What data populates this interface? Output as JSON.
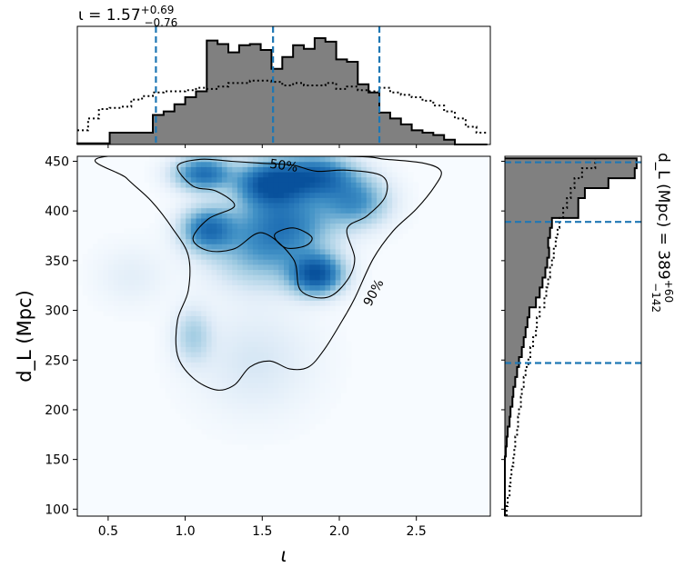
{
  "chart_data": [
    {
      "panel": "top-marginal",
      "type": "histogram",
      "title": "ι = 1.57",
      "title_sup": "+0.69",
      "title_sub": "−0.76",
      "xlim": [
        0.3,
        2.98
      ],
      "median": 1.57,
      "interval": [
        0.81,
        2.26
      ],
      "bin_edges": [
        0.3,
        0.37,
        0.44,
        0.51,
        0.58,
        0.65,
        0.72,
        0.79,
        0.86,
        0.93,
        1.0,
        1.07,
        1.14,
        1.21,
        1.28,
        1.35,
        1.42,
        1.49,
        1.56,
        1.63,
        1.7,
        1.77,
        1.84,
        1.91,
        1.98,
        2.05,
        2.12,
        2.19,
        2.26,
        2.33,
        2.4,
        2.47,
        2.54,
        2.61,
        2.68,
        2.75,
        2.82,
        2.89,
        2.96
      ],
      "posterior_counts": [
        1,
        1,
        1,
        10,
        10,
        10,
        10,
        25,
        28,
        34,
        40,
        45,
        88,
        85,
        78,
        84,
        85,
        80,
        64,
        74,
        84,
        81,
        90,
        87,
        72,
        70,
        51,
        44,
        27,
        22,
        17,
        12,
        10,
        8,
        4,
        0,
        0,
        0
      ],
      "prior_counts": [
        12,
        22,
        30,
        31,
        32,
        38,
        41,
        44,
        45,
        45,
        46,
        48,
        47,
        49,
        52,
        52,
        54,
        54,
        53,
        50,
        52,
        50,
        50,
        52,
        47,
        49,
        46,
        45,
        48,
        44,
        42,
        40,
        37,
        33,
        28,
        22,
        15,
        10
      ]
    },
    {
      "panel": "joint-density",
      "type": "heatmap",
      "xlabel": "ι",
      "ylabel": "d_L (Mpc)",
      "xlim": [
        0.3,
        2.98
      ],
      "ylim": [
        93,
        455
      ],
      "xticks": [
        "0.5",
        "1.0",
        "1.5",
        "2.0",
        "2.5"
      ],
      "yticks": [
        "100",
        "150",
        "200",
        "250",
        "300",
        "350",
        "400",
        "450"
      ],
      "contour_labels": [
        "50%",
        "90%"
      ],
      "colormap": [
        "#f7fbff",
        "#deebf7",
        "#9ecae1",
        "#4292c6",
        "#2171b5",
        "#08519c"
      ],
      "density_peaks": [
        {
          "x": 1.55,
          "y": 428,
          "amp": 0.95,
          "sx": 0.14,
          "sy": 14
        },
        {
          "x": 1.12,
          "y": 438,
          "amp": 0.72,
          "sx": 0.12,
          "sy": 11
        },
        {
          "x": 1.85,
          "y": 435,
          "amp": 0.8,
          "sx": 0.16,
          "sy": 14
        },
        {
          "x": 1.15,
          "y": 382,
          "amp": 0.7,
          "sx": 0.11,
          "sy": 14
        },
        {
          "x": 1.85,
          "y": 337,
          "amp": 0.95,
          "sx": 0.11,
          "sy": 13
        },
        {
          "x": 1.65,
          "y": 390,
          "amp": 0.55,
          "sx": 0.2,
          "sy": 22
        },
        {
          "x": 2.1,
          "y": 410,
          "amp": 0.5,
          "sx": 0.14,
          "sy": 16
        },
        {
          "x": 1.5,
          "y": 360,
          "amp": 0.35,
          "sx": 0.22,
          "sy": 24
        },
        {
          "x": 1.05,
          "y": 275,
          "amp": 0.22,
          "sx": 0.08,
          "sy": 18
        },
        {
          "x": 1.45,
          "y": 250,
          "amp": 0.1,
          "sx": 0.25,
          "sy": 35
        },
        {
          "x": 0.65,
          "y": 335,
          "amp": 0.06,
          "sx": 0.15,
          "sy": 20
        }
      ],
      "contour_90": [
        [
          0.5,
          455
        ],
        [
          0.62,
          433
        ],
        [
          0.78,
          410
        ],
        [
          0.92,
          382
        ],
        [
          1.02,
          355
        ],
        [
          1.02,
          320
        ],
        [
          0.95,
          290
        ],
        [
          0.95,
          255
        ],
        [
          1.05,
          232
        ],
        [
          1.2,
          220
        ],
        [
          1.32,
          225
        ],
        [
          1.42,
          243
        ],
        [
          1.55,
          249
        ],
        [
          1.68,
          241
        ],
        [
          1.8,
          243
        ],
        [
          1.9,
          260
        ],
        [
          2.02,
          290
        ],
        [
          2.1,
          312
        ],
        [
          2.22,
          352
        ],
        [
          2.35,
          380
        ],
        [
          2.5,
          402
        ],
        [
          2.62,
          425
        ],
        [
          2.66,
          440
        ],
        [
          2.55,
          448
        ],
        [
          2.3,
          452
        ],
        [
          2.0,
          455
        ]
      ],
      "contour_50_main": [
        [
          0.95,
          445
        ],
        [
          1.05,
          425
        ],
        [
          1.2,
          420
        ],
        [
          1.32,
          405
        ],
        [
          1.15,
          392
        ],
        [
          1.05,
          372
        ],
        [
          1.15,
          360
        ],
        [
          1.32,
          362
        ],
        [
          1.5,
          378
        ],
        [
          1.7,
          352
        ],
        [
          1.75,
          320
        ],
        [
          1.92,
          313
        ],
        [
          2.05,
          330
        ],
        [
          2.1,
          352
        ],
        [
          2.05,
          382
        ],
        [
          2.18,
          395
        ],
        [
          2.3,
          415
        ],
        [
          2.28,
          435
        ],
        [
          2.05,
          441
        ],
        [
          1.85,
          440
        ],
        [
          1.7,
          446
        ],
        [
          1.5,
          448
        ],
        [
          1.3,
          450
        ],
        [
          1.1,
          452
        ]
      ],
      "contour_50_hole": [
        [
          1.58,
          376
        ],
        [
          1.65,
          363
        ],
        [
          1.78,
          365
        ],
        [
          1.82,
          374
        ],
        [
          1.7,
          383
        ]
      ]
    },
    {
      "panel": "right-marginal",
      "type": "histogram",
      "title": "d_L (Mpc) = 389",
      "title_sup": "+60",
      "title_sub": "−142",
      "ylim": [
        93,
        455
      ],
      "median": 389,
      "interval": [
        247,
        449
      ],
      "bin_edges": [
        93,
        103,
        113,
        123,
        133,
        143,
        153,
        163,
        173,
        183,
        193,
        203,
        213,
        223,
        233,
        243,
        253,
        263,
        273,
        283,
        293,
        303,
        313,
        323,
        333,
        343,
        353,
        363,
        373,
        383,
        393,
        403,
        413,
        423,
        433,
        443,
        453
      ],
      "posterior_counts": [
        0,
        0,
        0,
        0,
        0,
        0,
        1,
        2,
        3,
        5,
        6,
        8,
        9,
        11,
        13,
        15,
        18,
        20,
        22,
        24,
        26,
        33,
        37,
        40,
        43,
        45,
        47,
        46,
        48,
        50,
        78,
        78,
        85,
        110,
        138,
        140
      ],
      "prior_counts": [
        2,
        3,
        5,
        6,
        7,
        9,
        10,
        11,
        13,
        14,
        15,
        17,
        18,
        20,
        22,
        25,
        27,
        30,
        33,
        34,
        37,
        42,
        44,
        46,
        48,
        50,
        52,
        54,
        56,
        58,
        62,
        66,
        70,
        74,
        82,
        96
      ]
    }
  ]
}
